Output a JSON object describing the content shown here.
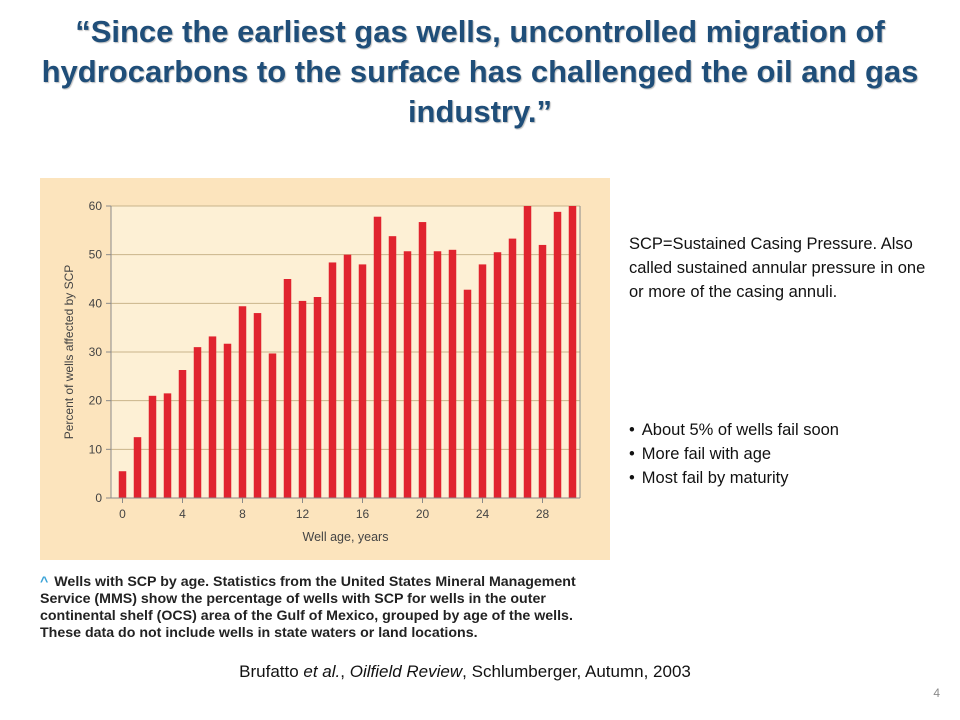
{
  "slide": {
    "title": "“Since the earliest gas wells, uncontrolled migration of hydrocarbons to the surface has challenged the oil and gas industry.”",
    "definition": "SCP=Sustained Casing Pressure. Also called sustained annular pressure in one or more of the casing annuli.",
    "bullets": [
      "About 5% of wells fail soon",
      "More fail with age",
      "Most fail by maturity"
    ],
    "caption_marker": "^",
    "caption": "Wells with SCP by age. Statistics from the United States Mineral Management Service (MMS) show the percentage of wells with SCP for wells in the outer continental shelf (OCS) area of the Gulf of Mexico, grouped by age of the wells. These data do not include wells in state waters or land locations.",
    "source": {
      "authors": "Brufatto ",
      "etal": "et al.",
      "sep1": ", ",
      "journal": "Oilfield Review",
      "rest": ", Schlumberger, Autumn, 2003"
    },
    "slide_number": "4"
  },
  "chart_data": {
    "type": "bar",
    "xlabel": "Well age, years",
    "ylabel": "Percent of wells affected by SCP",
    "x": [
      0,
      1,
      2,
      3,
      4,
      5,
      6,
      7,
      8,
      9,
      10,
      11,
      12,
      13,
      14,
      15,
      16,
      17,
      18,
      19,
      20,
      21,
      22,
      23,
      24,
      25,
      26,
      27,
      28,
      29,
      30
    ],
    "values": [
      5.5,
      12.5,
      21,
      21.5,
      26.3,
      31,
      33.2,
      31.7,
      39.4,
      38,
      29.7,
      45,
      40.5,
      41.3,
      48.4,
      50,
      48,
      57.8,
      53.8,
      50.7,
      56.7,
      50.7,
      51,
      42.8,
      48,
      50.5,
      53.3,
      60,
      52,
      58.8,
      60
    ],
    "xticks": [
      0,
      4,
      8,
      12,
      16,
      20,
      24,
      28
    ],
    "yticks": [
      0,
      10,
      20,
      30,
      40,
      50,
      60
    ],
    "xlim": [
      0,
      30
    ],
    "ylim": [
      0,
      60
    ],
    "grid": true,
    "colors": {
      "bar": "#e0232e",
      "panel_bg": "#fce4bd",
      "plot_bg": "#fdf0d5",
      "grid": "#c9b48a",
      "axis": "#8a8a8a",
      "text": "#444444"
    }
  }
}
